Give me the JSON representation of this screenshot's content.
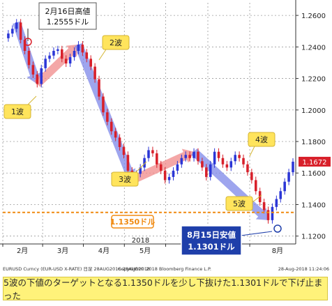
{
  "chart_data": {
    "type": "candlestick",
    "x_tick_labels": [
      "2月",
      "3月",
      "4月",
      "5月",
      "6月",
      "7月",
      "8月"
    ],
    "year_label": "2018",
    "y_tick_labels": [
      "1.2600",
      "1.2400",
      "1.2200",
      "1.2000",
      "1.1800",
      "1.1600",
      "1.1400",
      "1.1200"
    ],
    "ylim": [
      1.115,
      1.268
    ],
    "current_price_label": "1.1672",
    "support_level": 1.135,
    "support_label": "1.1350ドル",
    "series": [
      {
        "values": [
          1.2455,
          1.2485,
          1.2515,
          1.2555,
          1.2445,
          1.2375,
          1.2285,
          1.2225,
          1.2165,
          1.2265,
          1.2325,
          1.2345,
          1.2375,
          1.2385,
          1.2325,
          1.2295,
          1.2335,
          1.2375,
          1.2415,
          1.2365,
          1.2325,
          1.2275,
          1.2195,
          1.2085,
          1.1985,
          1.1925,
          1.1865,
          1.1825,
          1.1765,
          1.1715,
          1.1615,
          1.1555,
          1.1595,
          1.1635,
          1.1695,
          1.1745,
          1.1725,
          1.1655,
          1.1615,
          1.1555,
          1.1575,
          1.1615,
          1.1655,
          1.1695,
          1.1715,
          1.1695,
          1.1735,
          1.1675,
          1.1635,
          1.1575,
          1.1655,
          1.1735,
          1.1695,
          1.1655,
          1.1635,
          1.1675,
          1.1715,
          1.1695,
          1.1655,
          1.1605,
          1.1555,
          1.1485,
          1.1415,
          1.1365,
          1.1301,
          1.1385,
          1.1435,
          1.1485,
          1.1545,
          1.1605,
          1.1672
        ]
      }
    ],
    "annotations": {
      "high": {
        "title": "2月16日高値",
        "value": "1.2555ドル"
      },
      "low": {
        "title": "8月15日安値",
        "value": "1.1301ドル"
      },
      "waves": [
        "1波",
        "2波",
        "3波",
        "4波",
        "5波"
      ]
    },
    "footer_left": "EURUSD Curncy (EUR-USD X-RATE)  日足 28AUG2016-28AUG2018",
    "footer_mid": "Copyright© 2018 Bloomberg Finance L.P.",
    "footer_right": "28-Aug-2018 11:24:06",
    "caption": "5波の下値のターゲットとなる1.1350ドルを少し下抜けた1.1301ドルで下げ止まった"
  },
  "colors": {
    "up": "#2b36d6",
    "down": "#d8202a",
    "support": "#f08a10",
    "wave_down": "#7d87e8",
    "wave_up": "#f08a8a",
    "callout": "#ffe45c",
    "low_box": "#1f3faa"
  }
}
